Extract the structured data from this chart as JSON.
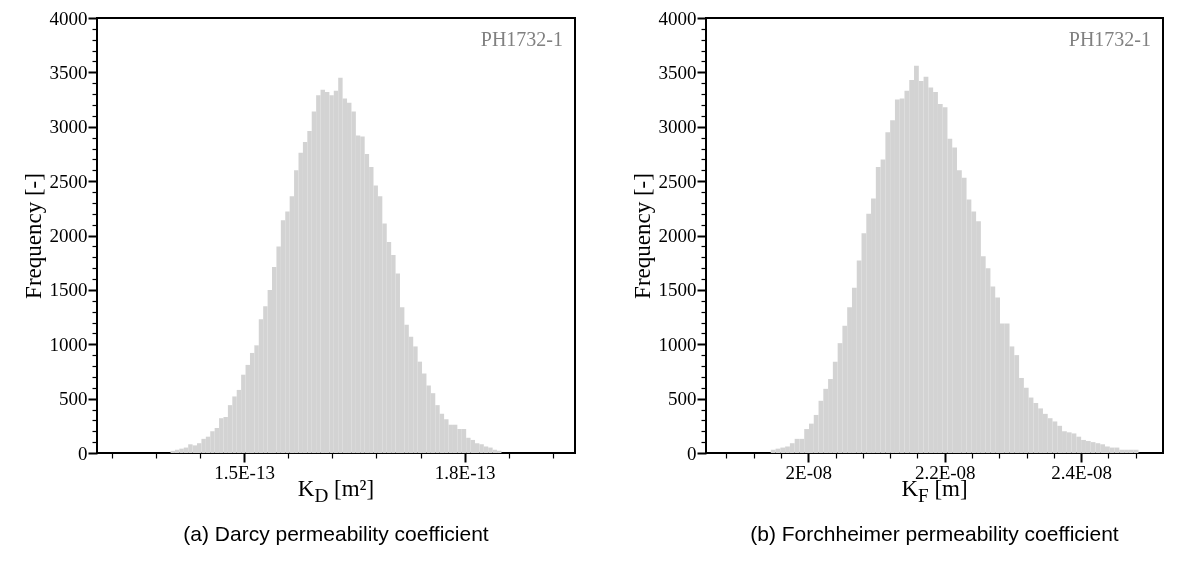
{
  "chart_data": [
    {
      "type": "histogram",
      "title": "(a)  Darcy permeability coefficient",
      "xlabel": "K$_{D}$ [m²]",
      "ylabel": "Frequency [-]",
      "color": "#d3d3d3",
      "annotations": [
        "PH1732-1"
      ],
      "bins": [
        1.4e-13,
        1.406e-13,
        1.412e-13,
        1.418e-13,
        1.424e-13,
        1.43e-13,
        1.436e-13,
        1.442e-13,
        1.448e-13,
        1.454e-13,
        1.46e-13,
        1.466e-13,
        1.472e-13,
        1.478e-13,
        1.484e-13,
        1.49e-13,
        1.496e-13,
        1.502e-13,
        1.508e-13,
        1.514e-13,
        1.52e-13,
        1.526e-13,
        1.532e-13,
        1.538e-13,
        1.544e-13,
        1.55e-13,
        1.556e-13,
        1.562e-13,
        1.568e-13,
        1.574e-13,
        1.58e-13,
        1.586e-13,
        1.592e-13,
        1.598e-13,
        1.604e-13,
        1.61e-13,
        1.616e-13,
        1.622e-13,
        1.628e-13,
        1.634e-13,
        1.64e-13,
        1.646e-13,
        1.652e-13,
        1.658e-13,
        1.664e-13,
        1.67e-13,
        1.676e-13,
        1.682e-13,
        1.688e-13,
        1.694e-13,
        1.7e-13,
        1.706e-13,
        1.712e-13,
        1.718e-13,
        1.724e-13,
        1.73e-13,
        1.736e-13,
        1.742e-13,
        1.748e-13,
        1.754e-13,
        1.76e-13,
        1.766e-13,
        1.772e-13,
        1.778e-13,
        1.784e-13,
        1.79e-13,
        1.796e-13,
        1.802e-13,
        1.808e-13,
        1.814e-13,
        1.82e-13,
        1.826e-13,
        1.832e-13,
        1.838e-13,
        1.844e-13,
        1.85e-13
      ],
      "values": [
        20,
        30,
        40,
        50,
        80,
        70,
        90,
        130,
        150,
        200,
        230,
        320,
        330,
        440,
        520,
        580,
        720,
        810,
        920,
        990,
        1230,
        1350,
        1500,
        1710,
        1900,
        2140,
        2220,
        2360,
        2600,
        2760,
        2860,
        2960,
        3140,
        3290,
        3340,
        3320,
        3290,
        3330,
        3450,
        3260,
        3220,
        3140,
        2920,
        2910,
        2750,
        2630,
        2460,
        2360,
        2110,
        1940,
        1820,
        1650,
        1340,
        1180,
        1070,
        980,
        840,
        730,
        620,
        550,
        440,
        360,
        310,
        260,
        260,
        220,
        220,
        140,
        120,
        90,
        80,
        60,
        50,
        30,
        20
      ],
      "xlim": [
        1.3e-13,
        1.95e-13
      ],
      "xticks": [
        {
          "value": 1.32e-13,
          "label": null
        },
        {
          "value": 1.38e-13,
          "label": null
        },
        {
          "value": 1.44e-13,
          "label": null
        },
        {
          "value": 1.5e-13,
          "label": "1.5E-13"
        },
        {
          "value": 1.56e-13,
          "label": null
        },
        {
          "value": 1.62e-13,
          "label": null
        },
        {
          "value": 1.68e-13,
          "label": null
        },
        {
          "value": 1.74e-13,
          "label": null
        },
        {
          "value": 1.8e-13,
          "label": "1.8E-13"
        },
        {
          "value": 1.86e-13,
          "label": null
        },
        {
          "value": 1.92e-13,
          "label": null
        }
      ],
      "ylim": [
        0,
        4000
      ],
      "yticks": [
        0,
        {
          "value": 100,
          "label": null
        },
        {
          "value": 200,
          "label": null
        },
        {
          "value": 300,
          "label": null
        },
        {
          "value": 400,
          "label": null
        },
        500,
        {
          "value": 600,
          "label": null
        },
        {
          "value": 700,
          "label": null
        },
        {
          "value": 800,
          "label": null
        },
        {
          "value": 900,
          "label": null
        },
        1000,
        {
          "value": 1100,
          "label": null
        },
        {
          "value": 1200,
          "label": null
        },
        {
          "value": 1300,
          "label": null
        },
        {
          "value": 1400,
          "label": null
        },
        1500,
        {
          "value": 1600,
          "label": null
        },
        {
          "value": 1700,
          "label": null
        },
        {
          "value": 1800,
          "label": null
        },
        {
          "value": 1900,
          "label": null
        },
        2000,
        {
          "value": 2100,
          "label": null
        },
        {
          "value": 2200,
          "label": null
        },
        {
          "value": 2300,
          "label": null
        },
        {
          "value": 2400,
          "label": null
        },
        2500,
        {
          "value": 2600,
          "label": null
        },
        {
          "value": 2700,
          "label": null
        },
        {
          "value": 2800,
          "label": null
        },
        {
          "value": 2900,
          "label": null
        },
        3000,
        {
          "value": 3100,
          "label": null
        },
        {
          "value": 3200,
          "label": null
        },
        {
          "value": 3300,
          "label": null
        },
        {
          "value": 3400,
          "label": null
        },
        3500,
        {
          "value": 3600,
          "label": null
        },
        {
          "value": 3700,
          "label": null
        },
        {
          "value": 3800,
          "label": null
        },
        {
          "value": 3900,
          "label": null
        },
        4000
      ]
    },
    {
      "type": "histogram",
      "title": "(b)  Forchheimer permeability coefficient",
      "xlabel": "K$_{F}$ [m]",
      "ylabel": "Frequency [-]",
      "color": "#d3d3d3",
      "annotations": [
        "PH1732-1"
      ],
      "bins": [
        1.945e-08,
        1.952e-08,
        1.959e-08,
        1.966e-08,
        1.973e-08,
        1.98e-08,
        1.987e-08,
        1.994e-08,
        2.001e-08,
        2.008e-08,
        2.015e-08,
        2.022e-08,
        2.029e-08,
        2.036e-08,
        2.043e-08,
        2.05e-08,
        2.057e-08,
        2.064e-08,
        2.071e-08,
        2.078e-08,
        2.085e-08,
        2.092e-08,
        2.099e-08,
        2.106e-08,
        2.113e-08,
        2.12e-08,
        2.127e-08,
        2.134e-08,
        2.141e-08,
        2.148e-08,
        2.155e-08,
        2.162e-08,
        2.169e-08,
        2.176e-08,
        2.183e-08,
        2.19e-08,
        2.197e-08,
        2.204e-08,
        2.211e-08,
        2.218e-08,
        2.225e-08,
        2.232e-08,
        2.239e-08,
        2.246e-08,
        2.253e-08,
        2.26e-08,
        2.267e-08,
        2.274e-08,
        2.281e-08,
        2.288e-08,
        2.295e-08,
        2.302e-08,
        2.309e-08,
        2.316e-08,
        2.323e-08,
        2.33e-08,
        2.337e-08,
        2.344e-08,
        2.351e-08,
        2.358e-08,
        2.365e-08,
        2.372e-08,
        2.379e-08,
        2.386e-08,
        2.393e-08,
        2.4e-08,
        2.407e-08,
        2.414e-08,
        2.421e-08,
        2.428e-08,
        2.435e-08,
        2.442e-08,
        2.449e-08,
        2.456e-08,
        2.463e-08,
        2.47e-08,
        2.477e-08,
        2.484e-08
      ],
      "values": [
        30,
        40,
        50,
        60,
        90,
        130,
        130,
        220,
        270,
        350,
        480,
        590,
        680,
        840,
        1010,
        1170,
        1340,
        1520,
        1770,
        2020,
        2200,
        2340,
        2630,
        2700,
        2950,
        3060,
        3250,
        3260,
        3330,
        3430,
        3560,
        3420,
        3460,
        3360,
        3320,
        3210,
        3180,
        2890,
        2810,
        2600,
        2530,
        2330,
        2220,
        2130,
        1810,
        1700,
        1530,
        1430,
        1190,
        1190,
        980,
        900,
        690,
        600,
        510,
        460,
        410,
        360,
        320,
        290,
        250,
        200,
        190,
        180,
        150,
        120,
        110,
        100,
        90,
        80,
        60,
        50,
        50,
        30,
        30,
        30,
        30
      ],
      "xlim": [
        1.85e-08,
        2.52e-08
      ],
      "xticks": [
        {
          "value": 1.88e-08,
          "label": null
        },
        {
          "value": 1.92e-08,
          "label": null
        },
        {
          "value": 1.96e-08,
          "label": null
        },
        {
          "value": 2e-08,
          "label": "2E-08"
        },
        {
          "value": 2.04e-08,
          "label": null
        },
        {
          "value": 2.08e-08,
          "label": null
        },
        {
          "value": 2.12e-08,
          "label": null
        },
        {
          "value": 2.16e-08,
          "label": null
        },
        {
          "value": 2.2e-08,
          "label": "2.2E-08"
        },
        {
          "value": 2.24e-08,
          "label": null
        },
        {
          "value": 2.28e-08,
          "label": null
        },
        {
          "value": 2.32e-08,
          "label": null
        },
        {
          "value": 2.36e-08,
          "label": null
        },
        {
          "value": 2.4e-08,
          "label": "2.4E-08"
        },
        {
          "value": 2.44e-08,
          "label": null
        },
        {
          "value": 2.48e-08,
          "label": null
        }
      ],
      "ylim": [
        0,
        4000
      ],
      "yticks": [
        0,
        {
          "value": 100,
          "label": null
        },
        {
          "value": 200,
          "label": null
        },
        {
          "value": 300,
          "label": null
        },
        {
          "value": 400,
          "label": null
        },
        500,
        {
          "value": 600,
          "label": null
        },
        {
          "value": 700,
          "label": null
        },
        {
          "value": 800,
          "label": null
        },
        {
          "value": 900,
          "label": null
        },
        1000,
        {
          "value": 1100,
          "label": null
        },
        {
          "value": 1200,
          "label": null
        },
        {
          "value": 1300,
          "label": null
        },
        {
          "value": 1400,
          "label": null
        },
        1500,
        {
          "value": 1600,
          "label": null
        },
        {
          "value": 1700,
          "label": null
        },
        {
          "value": 1800,
          "label": null
        },
        {
          "value": 1900,
          "label": null
        },
        2000,
        {
          "value": 2100,
          "label": null
        },
        {
          "value": 2200,
          "label": null
        },
        {
          "value": 2300,
          "label": null
        },
        {
          "value": 2400,
          "label": null
        },
        2500,
        {
          "value": 2600,
          "label": null
        },
        {
          "value": 2700,
          "label": null
        },
        {
          "value": 2800,
          "label": null
        },
        {
          "value": 2900,
          "label": null
        },
        3000,
        {
          "value": 3100,
          "label": null
        },
        {
          "value": 3200,
          "label": null
        },
        {
          "value": 3300,
          "label": null
        },
        {
          "value": 3400,
          "label": null
        },
        3500,
        {
          "value": 3600,
          "label": null
        },
        {
          "value": 3700,
          "label": null
        },
        {
          "value": 3800,
          "label": null
        },
        {
          "value": 3900,
          "label": null
        },
        4000
      ]
    }
  ]
}
